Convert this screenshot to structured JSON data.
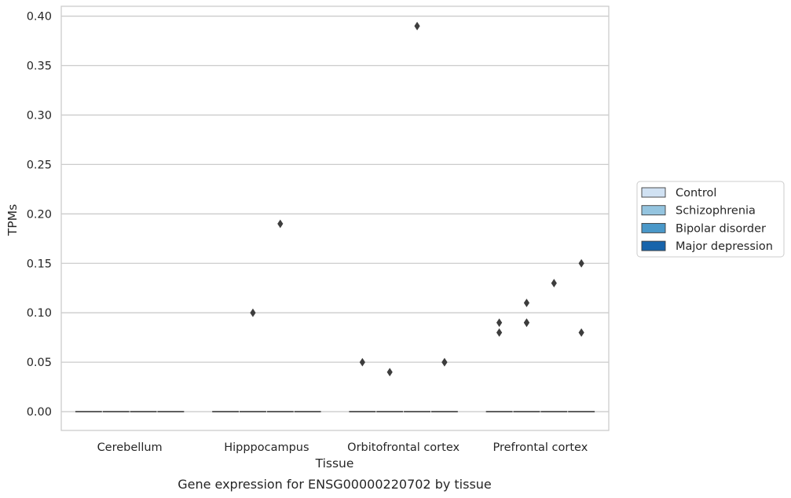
{
  "chart_data": {
    "type": "box",
    "title": "",
    "caption": "Gene expression for ENSG00000220702 by tissue",
    "xlabel": "Tissue",
    "ylabel": "TPMs",
    "ylim": [
      -0.019,
      0.41
    ],
    "yticks": [
      0.0,
      0.05,
      0.1,
      0.15,
      0.2,
      0.25,
      0.3,
      0.35,
      0.4
    ],
    "ytick_labels": [
      "0.00",
      "0.05",
      "0.10",
      "0.15",
      "0.20",
      "0.25",
      "0.30",
      "0.35",
      "0.40"
    ],
    "grid": "horizontal",
    "legend_placement": "right",
    "categories": [
      "Cerebellum",
      "Hipppocampus",
      "Orbitofrontal cortex",
      "Prefrontal cortex"
    ],
    "series": [
      {
        "name": "Control",
        "color": "#d0e1f2",
        "median": [
          0,
          0,
          0,
          0
        ],
        "outliers": [
          [],
          [],
          [
            0.05
          ],
          [
            0.09,
            0.08
          ]
        ]
      },
      {
        "name": "Schizophrenia",
        "color": "#94c4df",
        "median": [
          0,
          0,
          0,
          0
        ],
        "outliers": [
          [],
          [
            0.1
          ],
          [
            0.04
          ],
          [
            0.11,
            0.09,
            0.09
          ]
        ]
      },
      {
        "name": "Bipolar disorder",
        "color": "#4a98c9",
        "median": [
          0,
          0,
          0,
          0
        ],
        "outliers": [
          [],
          [
            0.19
          ],
          [
            0.39
          ],
          [
            0.13
          ]
        ]
      },
      {
        "name": "Major depression",
        "color": "#1764ab",
        "median": [
          0,
          0,
          0,
          0
        ],
        "outliers": [
          [],
          [],
          [
            0.05,
            0.05
          ],
          [
            0.15,
            0.08
          ]
        ]
      }
    ]
  }
}
